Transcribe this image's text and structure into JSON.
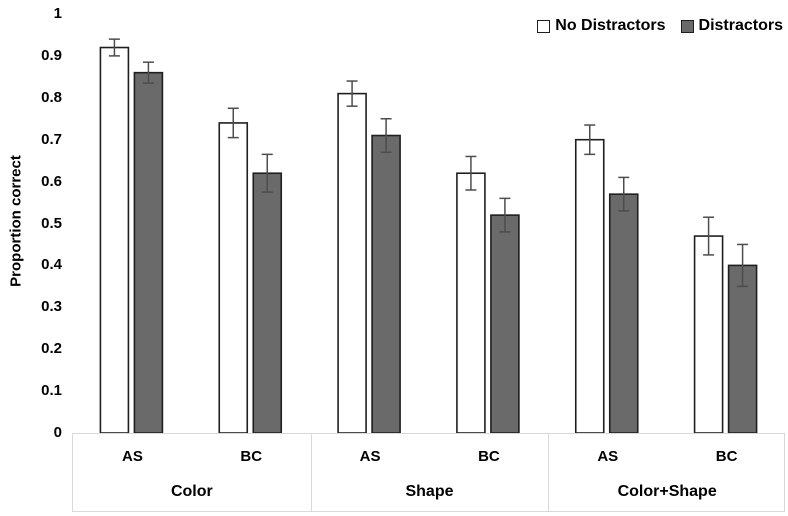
{
  "chart_data": {
    "type": "bar",
    "title": "",
    "ylabel": "Proportion correct",
    "xlabel": "",
    "ylim": [
      0,
      1
    ],
    "ytick_labels": [
      "1",
      "0.9",
      "0.8",
      "0.7",
      "0.6",
      "0.5",
      "0.4",
      "0.3",
      "0.2",
      "0.1",
      "0"
    ],
    "grid": false,
    "legend_position": "top-right",
    "groups": [
      "Color",
      "Shape",
      "Color+Shape"
    ],
    "subcategories": [
      "AS",
      "BC"
    ],
    "categories": [
      "Color AS",
      "Color BC",
      "Shape AS",
      "Shape BC",
      "Color+Shape AS",
      "Color+Shape BC"
    ],
    "series": [
      {
        "name": "No Distractors",
        "fill": "#ffffff",
        "values": [
          0.92,
          0.74,
          0.81,
          0.62,
          0.7,
          0.47
        ],
        "errors": [
          0.02,
          0.035,
          0.03,
          0.04,
          0.035,
          0.045
        ]
      },
      {
        "name": "Distractors",
        "fill": "#6a6a6a",
        "values": [
          0.86,
          0.62,
          0.71,
          0.52,
          0.57,
          0.4
        ],
        "errors": [
          0.025,
          0.045,
          0.04,
          0.04,
          0.04,
          0.05
        ]
      }
    ]
  },
  "colors": {
    "bar_border": "#1f1f1f",
    "error_bar": "#4d4d4d",
    "axis_box_border": "#d9d9d9",
    "text": "#000000",
    "background": "#ffffff"
  }
}
